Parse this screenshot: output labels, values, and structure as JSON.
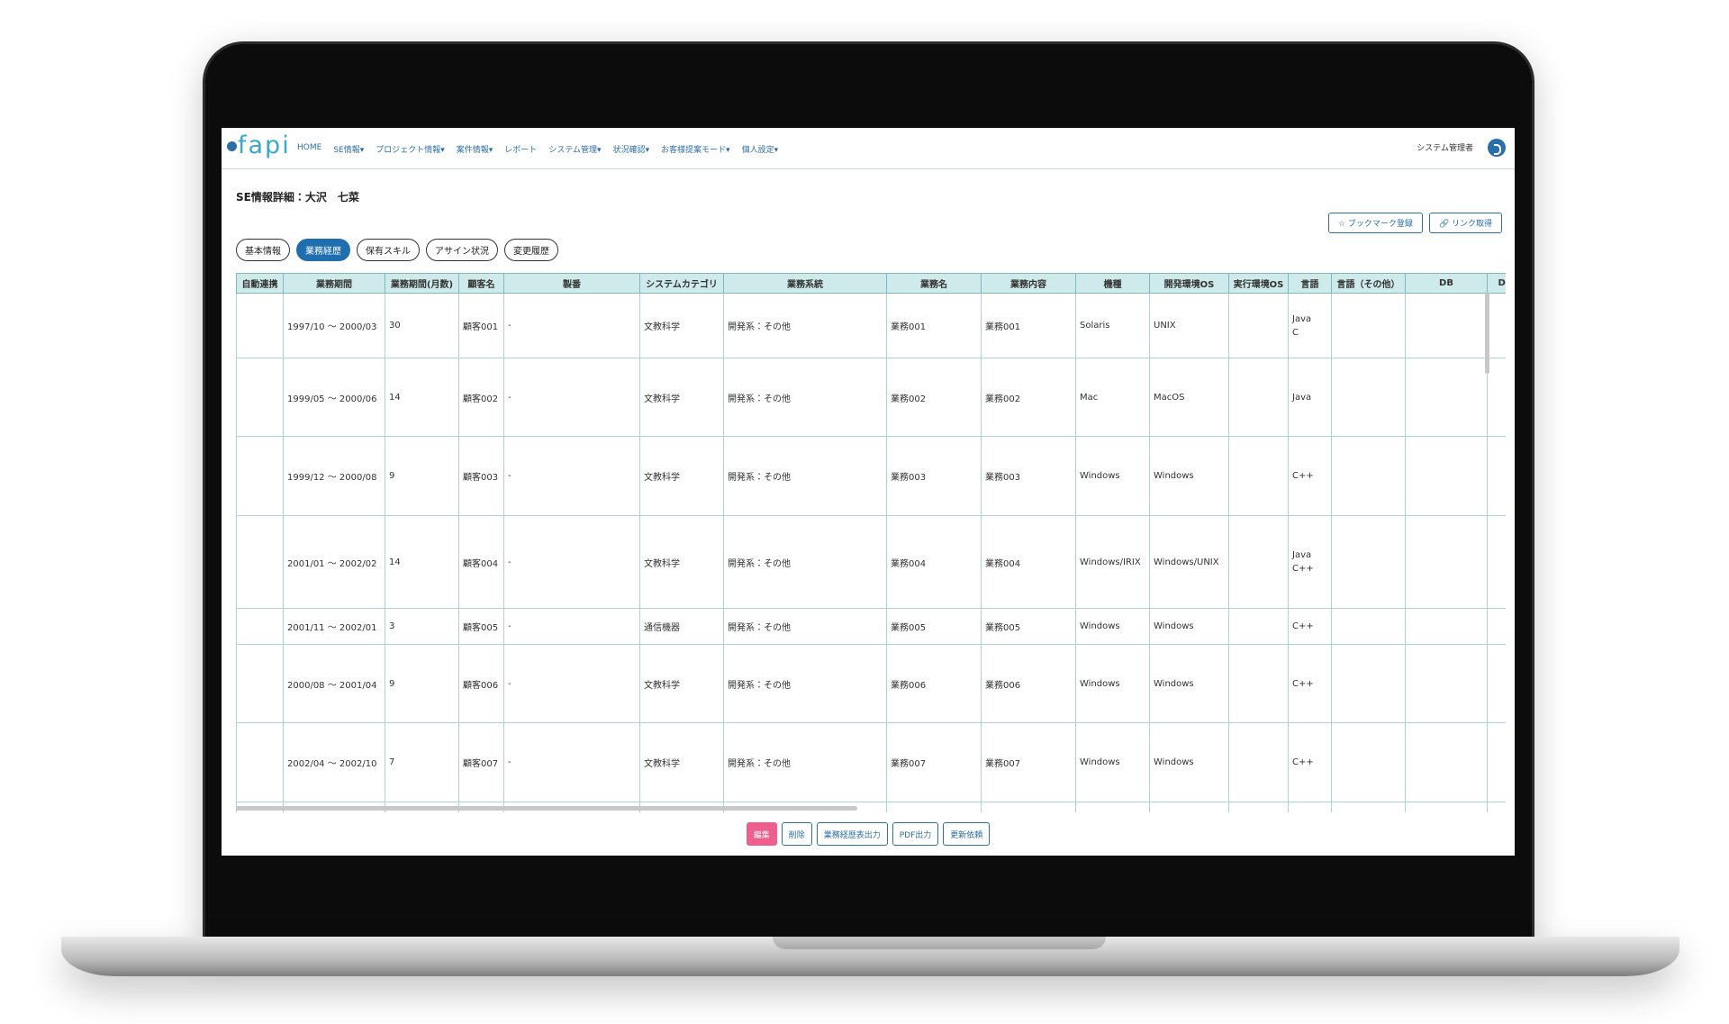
{
  "nav": {
    "logo": "fapi",
    "items": [
      "HOME",
      "SE情報▾",
      "プロジェクト情報▾",
      "案件情報▾",
      "レポート",
      "システム管理▾",
      "状況確認▾",
      "お客様提案モード▾",
      "個人設定▾"
    ],
    "user": "システム管理者"
  },
  "page": {
    "title": "SE情報詳細：大沢　七菜",
    "actions": [
      "☆ ブックマーク登録",
      "🔗 リンク取得"
    ],
    "tabs": [
      "基本情報",
      "業務経歴",
      "保有スキル",
      "アサイン状況",
      "変更履歴"
    ]
  },
  "table": {
    "headers": [
      "自動連携",
      "業務期間",
      "業務期間(月数)",
      "顧客名",
      "製番",
      "システムカテゴリ",
      "業務系統",
      "業務名",
      "業務内容",
      "機種",
      "開発環境OS",
      "実行環境OS",
      "言語",
      "言語（その他）",
      "DB",
      "DB"
    ],
    "rows": [
      {
        "period": "1997/10 ～ 2000/03",
        "months": 30,
        "customer": "顧客001",
        "seiban": "-",
        "category": "文教科学",
        "system": "開発系：その他",
        "name": "業務001",
        "content": "業務001",
        "machine": "Solaris",
        "dev_os": "UNIX",
        "languages": [
          "Java",
          "C"
        ]
      },
      {
        "period": "1999/05 ～ 2000/06",
        "months": 14,
        "customer": "顧客002",
        "seiban": "-",
        "category": "文教科学",
        "system": "開発系：その他",
        "name": "業務002",
        "content": "業務002",
        "machine": "Mac",
        "dev_os": "MacOS",
        "languages": [
          "Java"
        ]
      },
      {
        "period": "1999/12 ～ 2000/08",
        "months": 9,
        "customer": "顧客003",
        "seiban": "-",
        "category": "文教科学",
        "system": "開発系：その他",
        "name": "業務003",
        "content": "業務003",
        "machine": "Windows",
        "dev_os": "Windows",
        "languages": [
          "C++"
        ]
      },
      {
        "period": "2001/01 ～ 2002/02",
        "months": 14,
        "customer": "顧客004",
        "seiban": "-",
        "category": "文教科学",
        "system": "開発系：その他",
        "name": "業務004",
        "content": "業務004",
        "machine": "Windows/IRIX",
        "dev_os": "Windows/UNIX",
        "languages": [
          "Java",
          "C++"
        ]
      },
      {
        "period": "2001/11 ～ 2002/01",
        "months": 3,
        "customer": "顧客005",
        "seiban": "-",
        "category": "通信機器",
        "system": "開発系：その他",
        "name": "業務005",
        "content": "業務005",
        "machine": "Windows",
        "dev_os": "Windows",
        "languages": [
          "C++"
        ]
      },
      {
        "period": "2000/08 ～ 2001/04",
        "months": 9,
        "customer": "顧客006",
        "seiban": "-",
        "category": "文教科学",
        "system": "開発系：その他",
        "name": "業務006",
        "content": "業務006",
        "machine": "Windows",
        "dev_os": "Windows",
        "languages": [
          "C++"
        ]
      },
      {
        "period": "2002/04 ～ 2002/10",
        "months": 7,
        "customer": "顧客007",
        "seiban": "-",
        "category": "文教科学",
        "system": "開発系：その他",
        "name": "業務007",
        "content": "業務007",
        "machine": "Windows",
        "dev_os": "Windows",
        "languages": [
          "C++"
        ]
      }
    ]
  },
  "footer_buttons": [
    "編集",
    "削除",
    "業務経歴表出力",
    "PDF出力",
    "更新依頼"
  ]
}
